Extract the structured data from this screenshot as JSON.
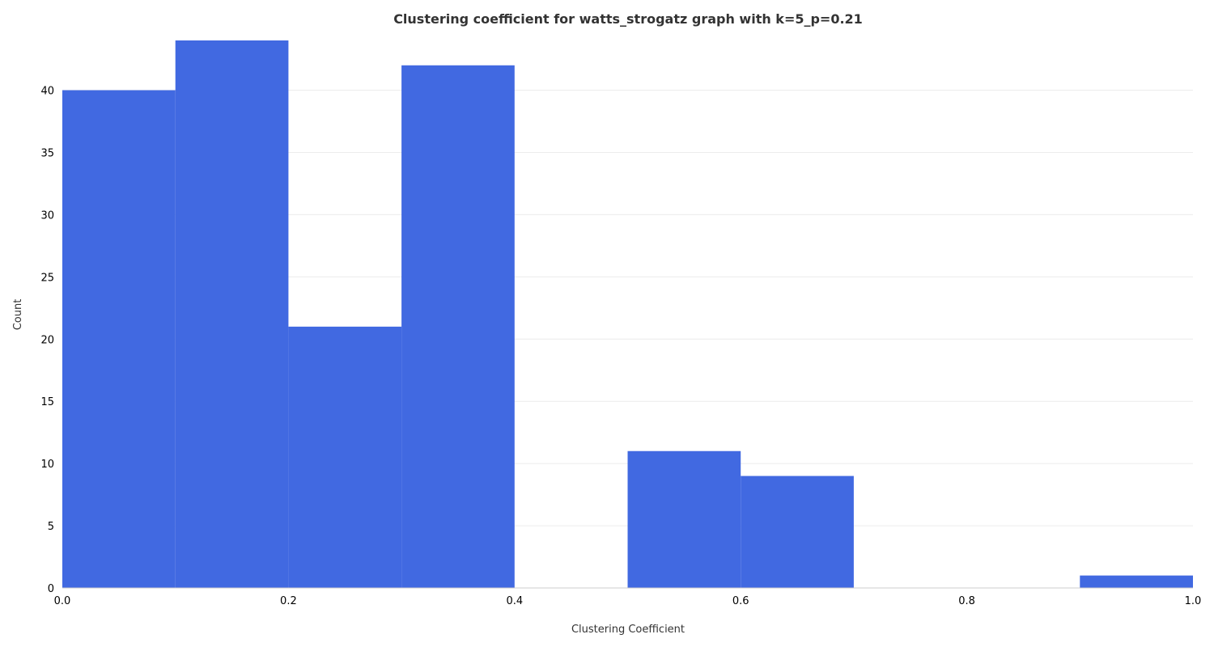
{
  "chart_data": {
    "type": "bar",
    "title": "Clustering coefficient for watts_strogatz graph with k=5_p=0.21",
    "xlabel": "Clustering Coefficient",
    "ylabel": "Count",
    "xlim": [
      0.0,
      1.0
    ],
    "ylim": [
      0,
      44
    ],
    "xticks": [
      "0.0",
      "0.2",
      "0.4",
      "0.6",
      "0.8",
      "1.0"
    ],
    "yticks": [
      "0",
      "5",
      "10",
      "15",
      "20",
      "25",
      "30",
      "35",
      "40"
    ],
    "grid": "horizontal",
    "legend": "none",
    "bin_edges": [
      0.0,
      0.1,
      0.2,
      0.3,
      0.4,
      0.5,
      0.6,
      0.7,
      0.8,
      0.9,
      1.0
    ],
    "values": [
      40,
      44,
      21,
      42,
      0,
      11,
      9,
      0,
      0,
      1
    ],
    "bar_color": "#4169E1"
  }
}
